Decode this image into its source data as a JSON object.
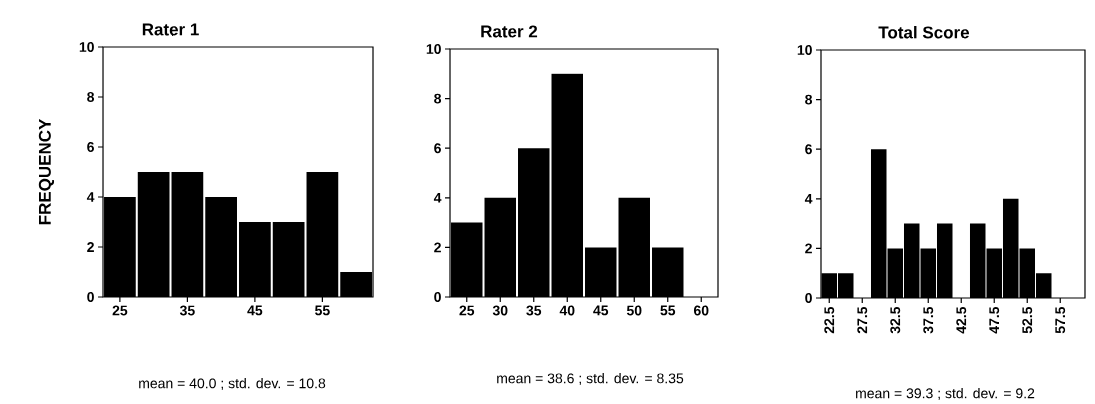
{
  "chart_data": [
    {
      "type": "histogram",
      "title": "Rater  1",
      "ylabel": "FREQUENCY",
      "color": "#000000",
      "bins": [
        22.5,
        27.5,
        32.5,
        37.5,
        42.5,
        47.5,
        52.5,
        57.5,
        62.5
      ],
      "values": [
        4,
        5,
        5,
        4,
        3,
        3,
        5,
        1
      ],
      "xlim": [
        22.5,
        62.5
      ],
      "ylim": [
        0,
        10
      ],
      "xticks": [
        25,
        35,
        45,
        55
      ],
      "yticks": [
        0,
        2,
        4,
        6,
        8,
        10
      ],
      "annotations": [
        "mean = 40.0 ; std. dev. = 10.8"
      ]
    },
    {
      "type": "histogram",
      "title": "Rater  2",
      "color": "#000000",
      "bins": [
        22.5,
        27.5,
        32.5,
        37.5,
        42.5,
        47.5,
        52.5,
        57.5,
        62.5
      ],
      "values": [
        3,
        4,
        6,
        9,
        2,
        4,
        2,
        0
      ],
      "xlim": [
        22.5,
        62.5
      ],
      "ylim": [
        0,
        10
      ],
      "xticks": [
        25,
        30,
        35,
        40,
        45,
        50,
        55,
        60
      ],
      "yticks": [
        0,
        2,
        4,
        6,
        8,
        10
      ],
      "annotations": [
        "mean = 38.6 ; std. dev. = 8.35"
      ]
    },
    {
      "type": "histogram",
      "title": "Total  Score",
      "color": "#000000",
      "bins": [
        21.25,
        23.75,
        26.25,
        28.75,
        31.25,
        33.75,
        36.25,
        38.75,
        41.25,
        43.75,
        46.25,
        48.75,
        51.25,
        53.75,
        56.25,
        58.75,
        61.25
      ],
      "values": [
        1,
        1,
        0,
        6,
        2,
        3,
        2,
        3,
        0,
        3,
        2,
        4,
        2,
        1,
        0,
        0
      ],
      "xlim": [
        21.25,
        61.25
      ],
      "ylim": [
        0,
        10
      ],
      "xticks": [
        22.5,
        27.5,
        32.5,
        37.5,
        42.5,
        47.5,
        52.5,
        57.5
      ],
      "yticks": [
        0,
        2,
        4,
        6,
        8,
        10
      ],
      "annotations": [
        "mean = 39.3 ; std. dev. = 9.2"
      ]
    }
  ]
}
